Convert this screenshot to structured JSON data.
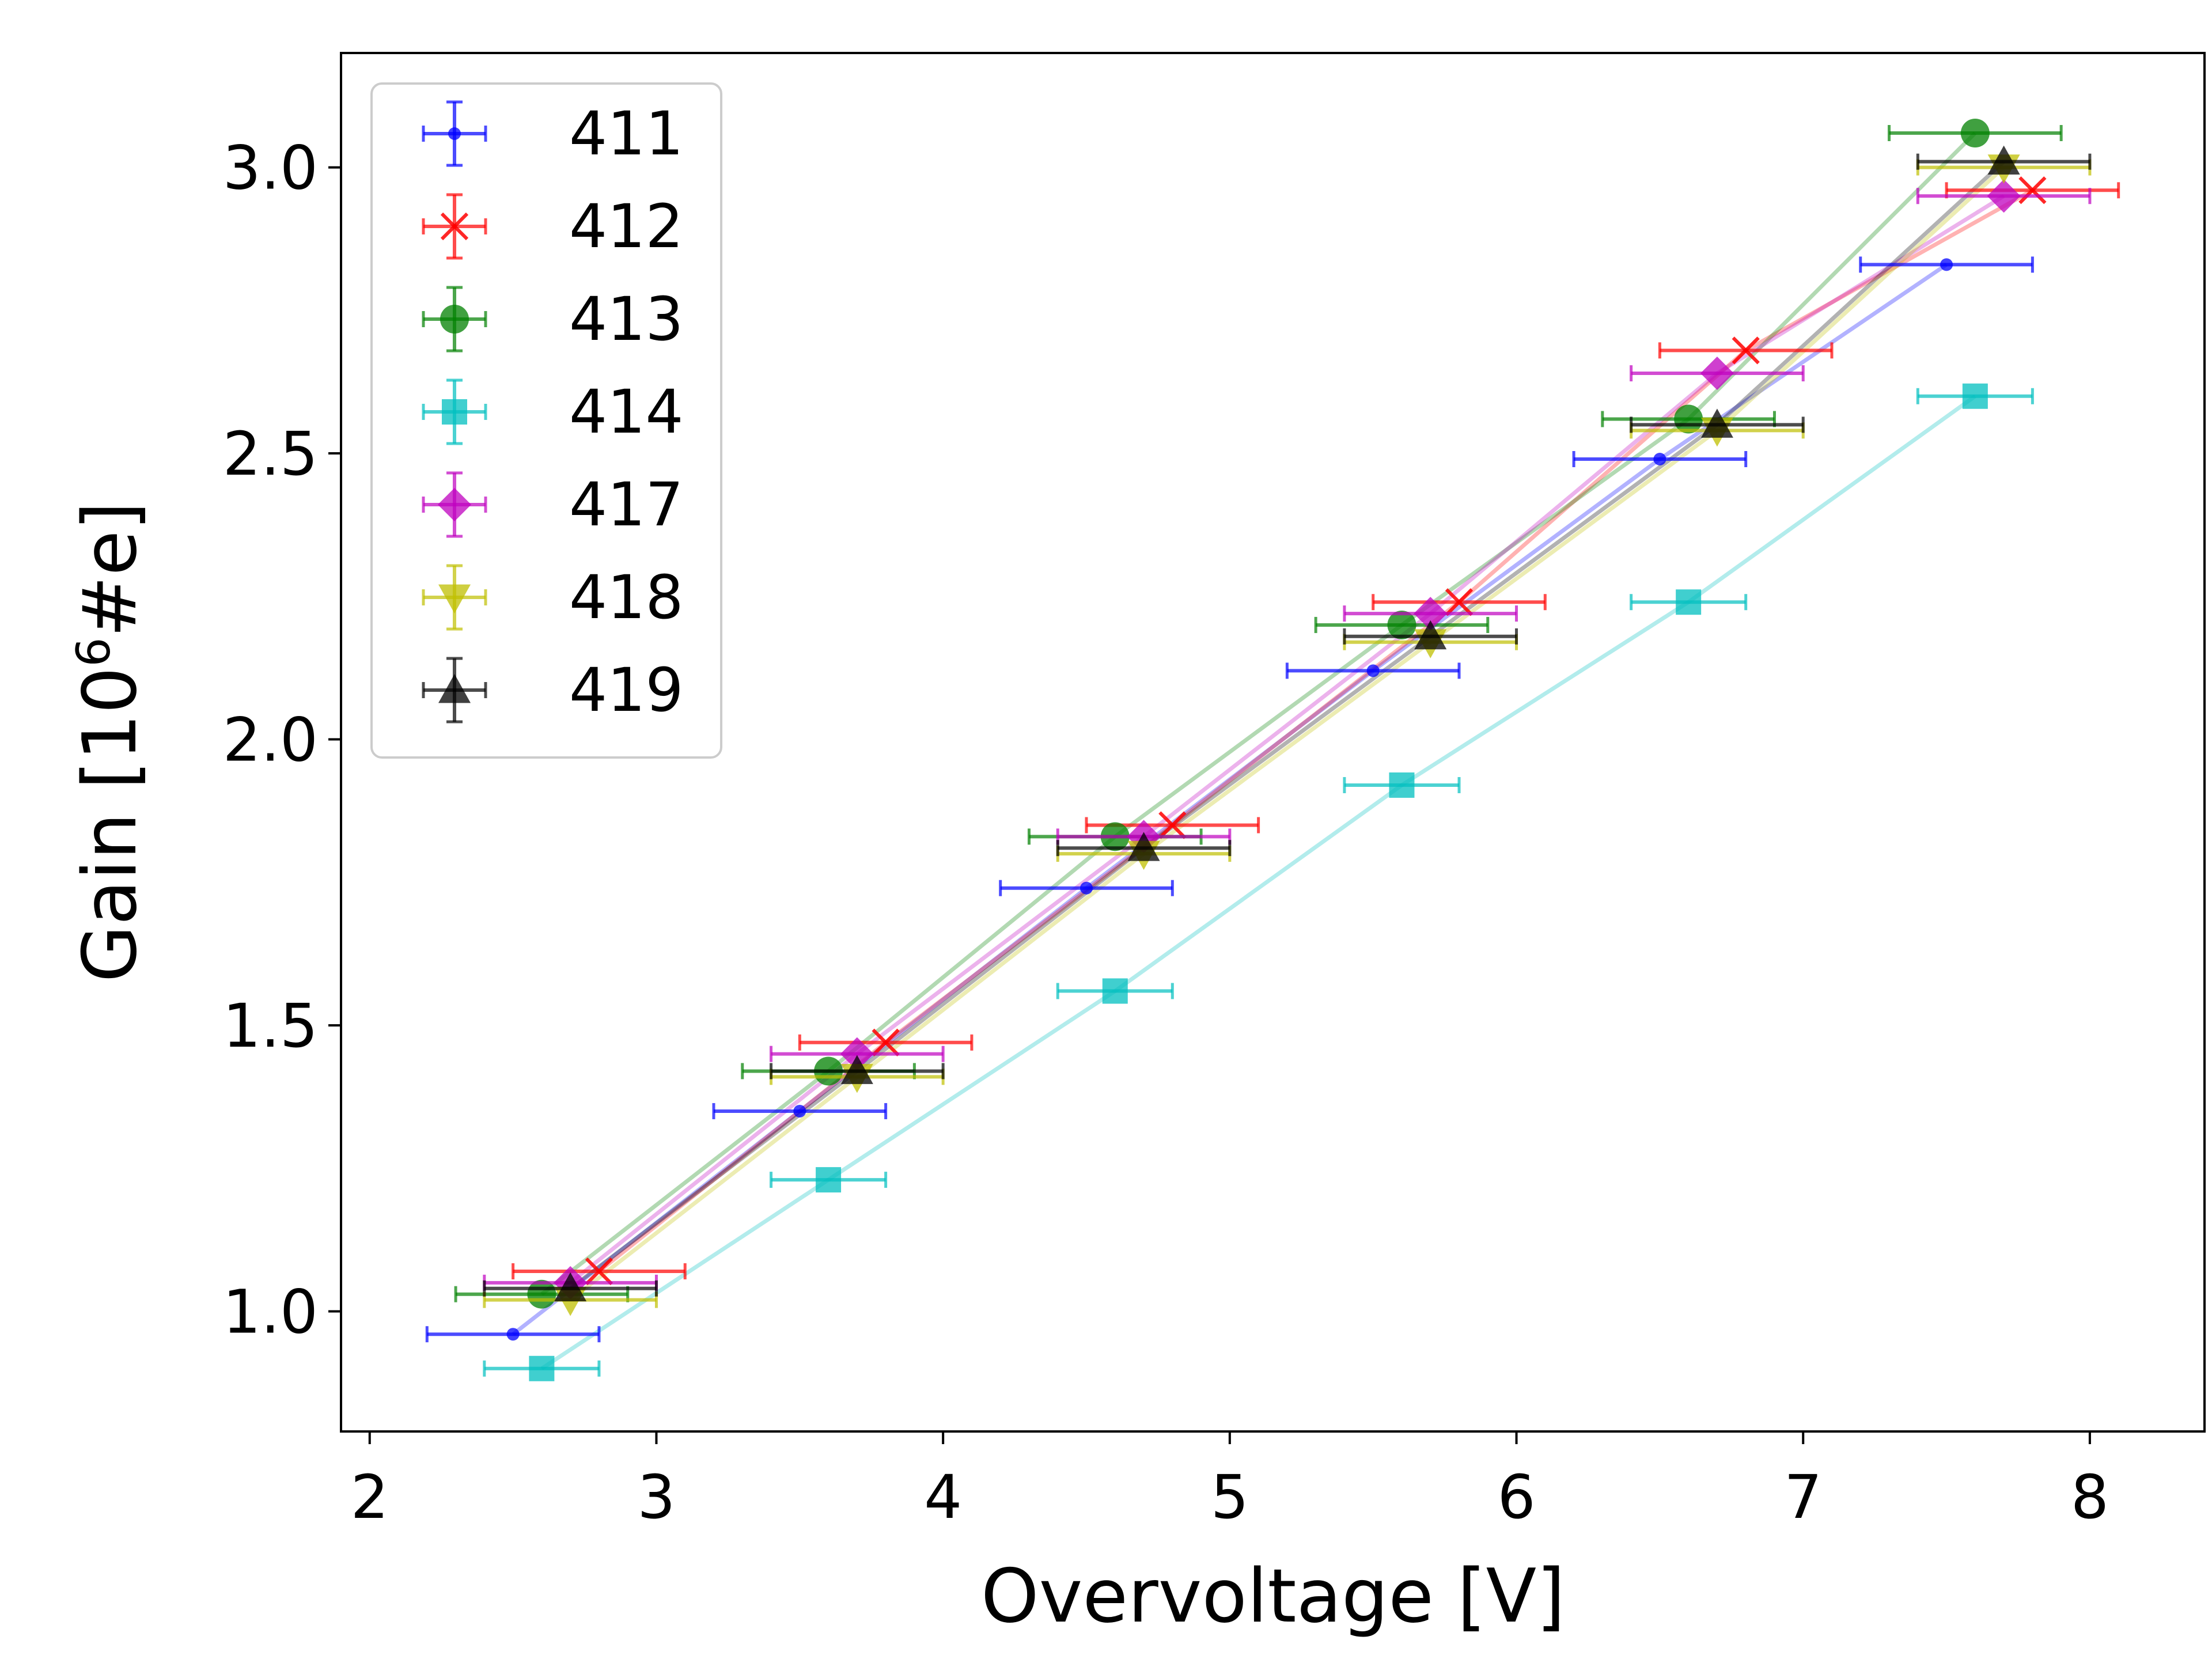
{
  "chart_data": {
    "type": "scatter",
    "title": "",
    "xlabel": "Overvoltage [V]",
    "ylabel_main": "Gain [10",
    "ylabel_sup": "6",
    "ylabel_tail": "#e]",
    "xlim": [
      1.9,
      8.4
    ],
    "ylim": [
      0.79,
      3.2
    ],
    "xticks": [
      2,
      3,
      4,
      5,
      6,
      7,
      8
    ],
    "yticks": [
      1.0,
      1.5,
      2.0,
      2.5,
      3.0
    ],
    "xtick_labels": [
      "2",
      "3",
      "4",
      "5",
      "6",
      "7",
      "8"
    ],
    "ytick_labels": [
      "1.0",
      "1.5",
      "2.0",
      "2.5",
      "3.0"
    ],
    "grid": false,
    "legend_position": "top-left",
    "x_error": 0.3,
    "x_error_414": 0.2,
    "series": [
      {
        "name": "411",
        "color": "#0000ff",
        "marker": "point",
        "x": [
          2.5,
          3.5,
          4.5,
          5.5,
          6.5,
          7.5
        ],
        "y": [
          0.96,
          1.35,
          1.74,
          2.12,
          2.49,
          2.83
        ]
      },
      {
        "name": "412",
        "color": "#ff0000",
        "marker": "x",
        "x": [
          2.8,
          3.8,
          4.8,
          5.8,
          6.8,
          7.8
        ],
        "y": [
          1.07,
          1.47,
          1.85,
          2.24,
          2.68,
          2.96
        ]
      },
      {
        "name": "413",
        "color": "#008000",
        "marker": "circle",
        "x": [
          2.6,
          3.6,
          4.6,
          5.6,
          6.6,
          7.6
        ],
        "y": [
          1.03,
          1.42,
          1.83,
          2.2,
          2.56,
          3.06
        ]
      },
      {
        "name": "414",
        "color": "#00bfbf",
        "marker": "square",
        "x": [
          2.6,
          3.6,
          4.6,
          5.6,
          6.6,
          7.6
        ],
        "y": [
          0.9,
          1.23,
          1.56,
          1.92,
          2.24,
          2.6
        ]
      },
      {
        "name": "417",
        "color": "#bf00bf",
        "marker": "diamond",
        "x": [
          2.7,
          3.7,
          4.7,
          5.7,
          6.7,
          7.7
        ],
        "y": [
          1.05,
          1.45,
          1.83,
          2.22,
          2.64,
          2.95
        ]
      },
      {
        "name": "418",
        "color": "#bfbf00",
        "marker": "triangle-down",
        "x": [
          2.7,
          3.7,
          4.7,
          5.7,
          6.7,
          7.7
        ],
        "y": [
          1.02,
          1.41,
          1.8,
          2.17,
          2.54,
          3.0
        ]
      },
      {
        "name": "419",
        "color": "#000000",
        "marker": "triangle-up",
        "x": [
          2.7,
          3.7,
          4.7,
          5.7,
          6.7,
          7.7
        ],
        "y": [
          1.04,
          1.42,
          1.81,
          2.18,
          2.55,
          3.01
        ]
      }
    ]
  }
}
